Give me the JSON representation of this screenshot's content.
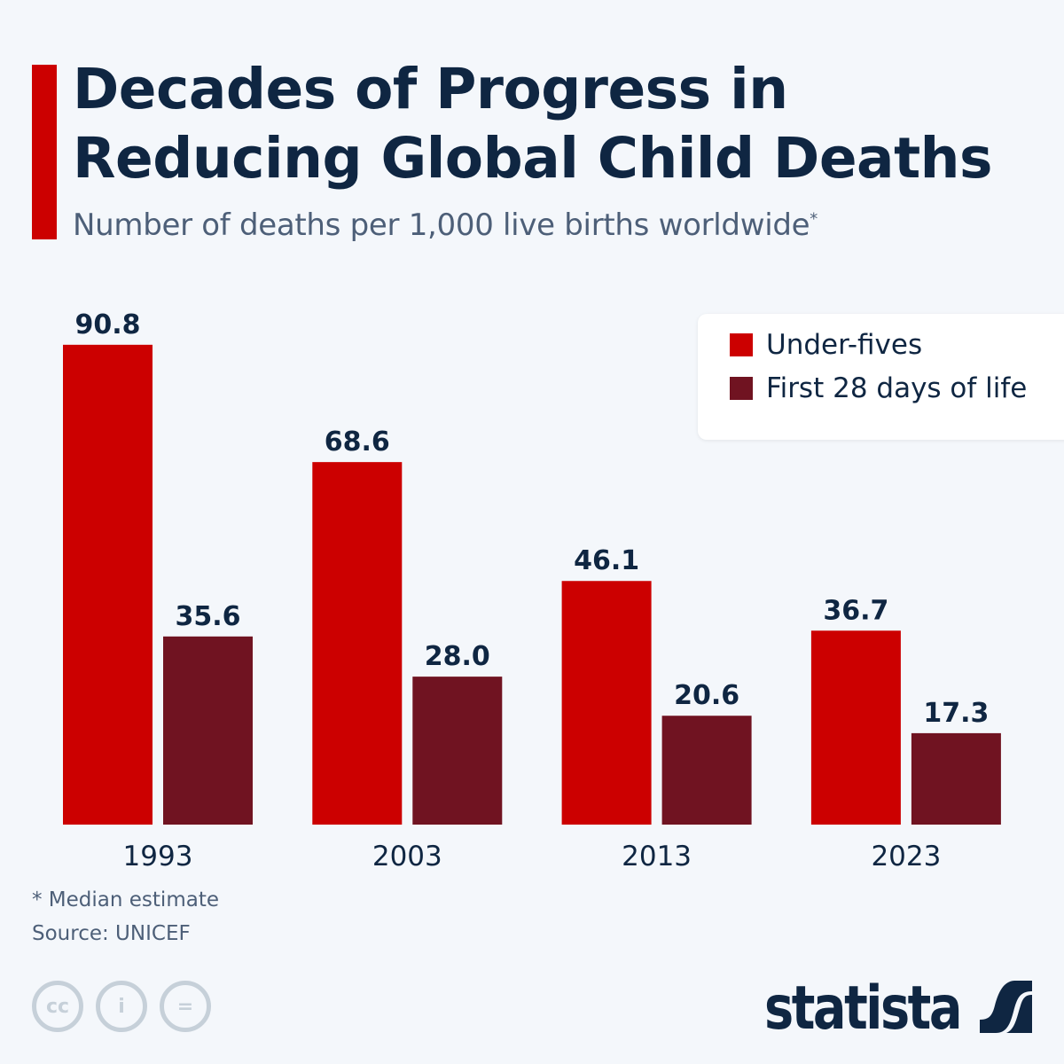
{
  "title": "Decades of Progress in Reducing Global Child Deaths",
  "subtitle": "Number of deaths per 1,000 live births worldwide",
  "subtitle_mark": "*",
  "footnote": "* Median estimate",
  "source": "Source: UNICEF",
  "brand": "statista",
  "license_icons": [
    "cc-icon",
    "attribution-icon",
    "no-derivatives-icon"
  ],
  "colors": {
    "accent": "#cc0000",
    "under_fives": "#cc0000",
    "first_28_days": "#701321"
  },
  "chart_data": {
    "type": "bar",
    "categories": [
      "1993",
      "2003",
      "2013",
      "2023"
    ],
    "series": [
      {
        "name": "Under-fives",
        "values": [
          90.8,
          68.6,
          46.1,
          36.7
        ]
      },
      {
        "name": "First 28 days of life",
        "values": [
          35.6,
          28.0,
          20.6,
          17.3
        ]
      }
    ],
    "ylim": [
      0,
      100
    ],
    "grid": false,
    "legend": "top-right",
    "data_labels": true
  }
}
